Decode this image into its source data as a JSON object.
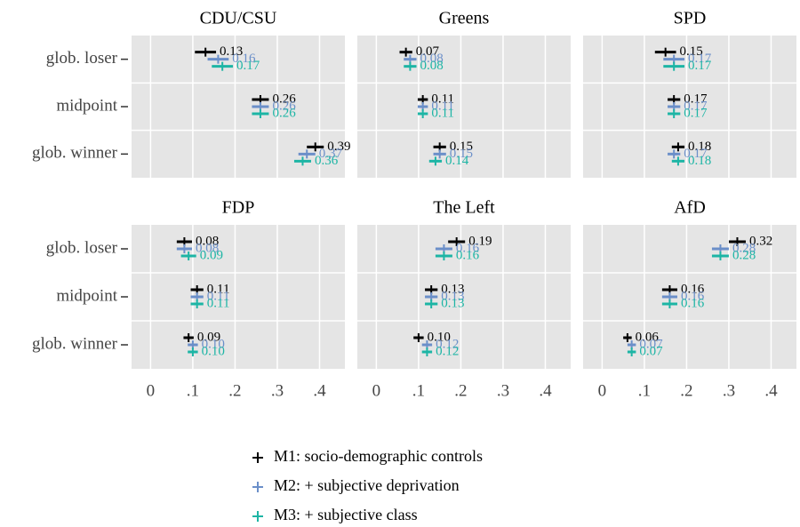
{
  "chart_data": {
    "type": "dot",
    "categories": [
      "glob. loser",
      "midpoint",
      "glob. winner"
    ],
    "xlim": [
      -0.045,
      0.46
    ],
    "xticks": [
      0,
      {
        "value": 0.1,
        "label": ".1"
      },
      {
        "value": 0.2,
        "label": ".2"
      },
      {
        "value": 0.3,
        "label": ".3"
      },
      {
        "value": 0.4,
        "label": ".4"
      }
    ],
    "grid": true,
    "series": [
      {
        "name": "M1: socio-demographic controls",
        "color": "#000000"
      },
      {
        "name": "M2: + subjective deprivation",
        "color": "#6b8fc9"
      },
      {
        "name": "M3: + subjective class",
        "color": "#1db5a5"
      }
    ],
    "panels": [
      {
        "title": "CDU/CSU",
        "series": [
          {
            "values": [
              0.13,
              0.26,
              0.39
            ],
            "value_labels": [
              "0.13",
              "0.26",
              "0.39"
            ],
            "errors": [
              0.025,
              0.02,
              0.02
            ]
          },
          {
            "values": [
              0.16,
              0.26,
              0.37
            ],
            "value_labels": [
              "0.16",
              "0.26",
              "0.37"
            ],
            "errors": [
              0.025,
              0.02,
              0.02
            ]
          },
          {
            "values": [
              0.17,
              0.26,
              0.36
            ],
            "value_labels": [
              "0.17",
              "0.26",
              "0.36"
            ],
            "errors": [
              0.025,
              0.02,
              0.02
            ]
          }
        ]
      },
      {
        "title": "Greens",
        "series": [
          {
            "values": [
              0.07,
              0.11,
              0.15
            ],
            "value_labels": [
              "0.07",
              "0.11",
              "0.15"
            ],
            "errors": [
              0.015,
              0.012,
              0.015
            ]
          },
          {
            "values": [
              0.08,
              0.11,
              0.15
            ],
            "value_labels": [
              "0.08",
              "0.11",
              "0.15"
            ],
            "errors": [
              0.015,
              0.012,
              0.015
            ]
          },
          {
            "values": [
              0.08,
              0.11,
              0.14
            ],
            "value_labels": [
              "0.08",
              "0.11",
              "0.14"
            ],
            "errors": [
              0.015,
              0.012,
              0.015
            ]
          }
        ]
      },
      {
        "title": "SPD",
        "series": [
          {
            "values": [
              0.15,
              0.17,
              0.18
            ],
            "value_labels": [
              "0.15",
              "0.17",
              "0.18"
            ],
            "errors": [
              0.025,
              0.015,
              0.015
            ]
          },
          {
            "values": [
              0.17,
              0.17,
              0.17
            ],
            "value_labels": [
              "0.17",
              "0.17",
              "0.17"
            ],
            "errors": [
              0.025,
              0.015,
              0.015
            ]
          },
          {
            "values": [
              0.17,
              0.17,
              0.18
            ],
            "value_labels": [
              "0.17",
              "0.17",
              "0.18"
            ],
            "errors": [
              0.025,
              0.015,
              0.015
            ]
          }
        ]
      },
      {
        "title": "FDP",
        "series": [
          {
            "values": [
              0.08,
              0.11,
              0.09
            ],
            "value_labels": [
              "0.08",
              "0.11",
              "0.09"
            ],
            "errors": [
              0.018,
              0.015,
              0.012
            ]
          },
          {
            "values": [
              0.08,
              0.11,
              0.1
            ],
            "value_labels": [
              "0.08",
              "0.11",
              "0.10"
            ],
            "errors": [
              0.018,
              0.015,
              0.012
            ]
          },
          {
            "values": [
              0.09,
              0.11,
              0.1
            ],
            "value_labels": [
              "0.09",
              "0.11",
              "0.10"
            ],
            "errors": [
              0.018,
              0.015,
              0.012
            ]
          }
        ]
      },
      {
        "title": "The Left",
        "series": [
          {
            "values": [
              0.19,
              0.13,
              0.1
            ],
            "value_labels": [
              "0.19",
              "0.13",
              "0.10"
            ],
            "errors": [
              0.02,
              0.015,
              0.012
            ]
          },
          {
            "values": [
              0.16,
              0.13,
              0.12
            ],
            "value_labels": [
              "0.16",
              "0.13",
              "0.12"
            ],
            "errors": [
              0.02,
              0.015,
              0.012
            ]
          },
          {
            "values": [
              0.16,
              0.13,
              0.12
            ],
            "value_labels": [
              "0.16",
              "0.13",
              "0.12"
            ],
            "errors": [
              0.02,
              0.015,
              0.012
            ]
          }
        ]
      },
      {
        "title": "AfD",
        "series": [
          {
            "values": [
              0.32,
              0.16,
              0.06
            ],
            "value_labels": [
              "0.32",
              "0.16",
              "0.06"
            ],
            "errors": [
              0.02,
              0.018,
              0.01
            ]
          },
          {
            "values": [
              0.28,
              0.16,
              0.07
            ],
            "value_labels": [
              "0.28",
              "0.16",
              "0.07"
            ],
            "errors": [
              0.02,
              0.018,
              0.01
            ]
          },
          {
            "values": [
              0.28,
              0.16,
              0.07
            ],
            "value_labels": [
              "0.28",
              "0.16",
              "0.07"
            ],
            "errors": [
              0.02,
              0.018,
              0.01
            ]
          }
        ]
      }
    ]
  }
}
